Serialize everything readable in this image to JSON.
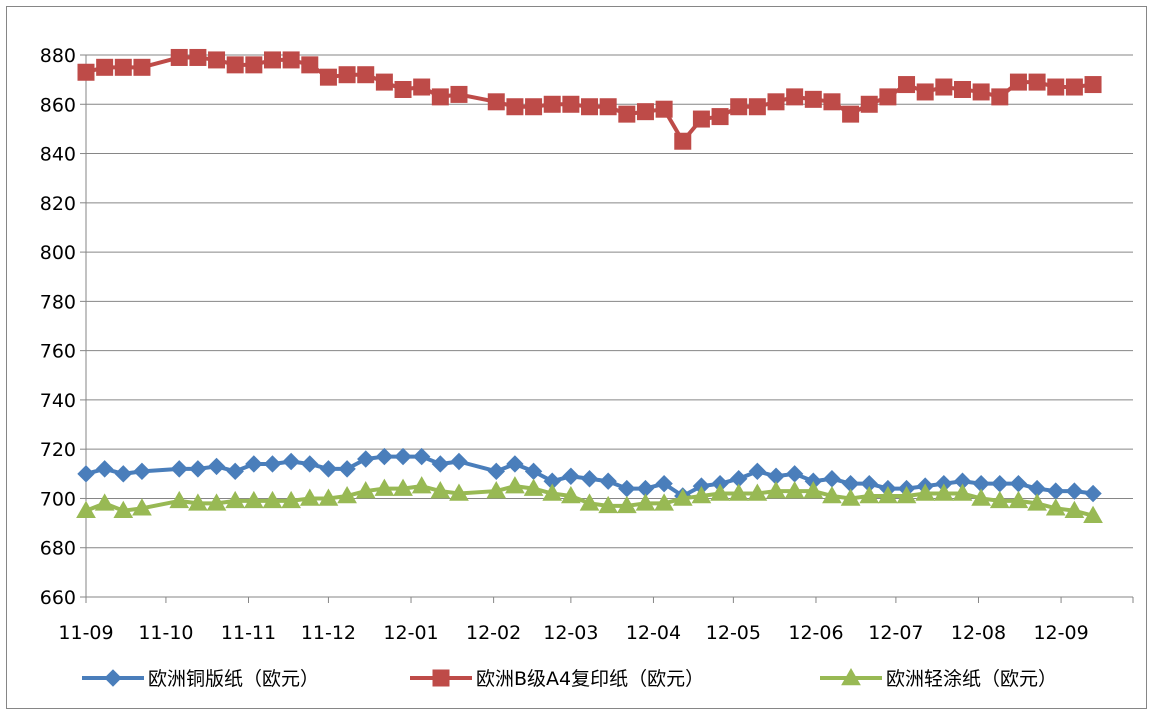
{
  "chart_data": {
    "type": "line",
    "title": "",
    "xlabel": "",
    "ylabel": "",
    "ylim": [
      660,
      880
    ],
    "yticks": [
      660,
      680,
      700,
      720,
      740,
      760,
      780,
      800,
      820,
      840,
      860,
      880
    ],
    "grid": true,
    "legend_position": "bottom",
    "x_range": [
      "2011-09-01",
      "2012-09-28"
    ],
    "xtick_labels": [
      "11-09",
      "11-10",
      "11-11",
      "11-12",
      "12-01",
      "12-02",
      "12-03",
      "12-04",
      "12-05",
      "12-06",
      "12-07",
      "12-08",
      "12-09"
    ],
    "xtick_dates": [
      "2011-09-01",
      "2011-10-01",
      "2011-11-01",
      "2011-12-01",
      "2012-01-01",
      "2012-02-01",
      "2012-03-01",
      "2012-04-01",
      "2012-05-01",
      "2012-06-01",
      "2012-07-01",
      "2012-08-01",
      "2012-09-01"
    ],
    "x": [
      "2011-09-01",
      "2011-09-08",
      "2011-09-15",
      "2011-09-22",
      "2011-10-06",
      "2011-10-13",
      "2011-10-20",
      "2011-10-27",
      "2011-11-03",
      "2011-11-10",
      "2011-11-17",
      "2011-11-24",
      "2011-12-01",
      "2011-12-08",
      "2011-12-15",
      "2011-12-22",
      "2011-12-29",
      "2012-01-05",
      "2012-01-12",
      "2012-01-19",
      "2012-02-02",
      "2012-02-09",
      "2012-02-16",
      "2012-02-23",
      "2012-03-01",
      "2012-03-08",
      "2012-03-15",
      "2012-03-22",
      "2012-03-29",
      "2012-04-05",
      "2012-04-12",
      "2012-04-19",
      "2012-04-26",
      "2012-05-03",
      "2012-05-10",
      "2012-05-17",
      "2012-05-24",
      "2012-05-31",
      "2012-06-07",
      "2012-06-14",
      "2012-06-21",
      "2012-06-28",
      "2012-07-05",
      "2012-07-12",
      "2012-07-19",
      "2012-07-26",
      "2012-08-02",
      "2012-08-09",
      "2012-08-16",
      "2012-08-23",
      "2012-08-30",
      "2012-09-06",
      "2012-09-13"
    ],
    "series": [
      {
        "name": "欧洲铜版纸（欧元）",
        "color": "#4a7ebb",
        "marker": "diamond",
        "values": [
          710,
          712,
          710,
          711,
          712,
          712,
          713,
          711,
          714,
          714,
          715,
          714,
          712,
          712,
          716,
          717,
          717,
          717,
          714,
          715,
          711,
          714,
          711,
          707,
          709,
          708,
          707,
          704,
          704,
          706,
          701,
          705,
          706,
          708,
          711,
          709,
          710,
          707,
          708,
          706,
          706,
          704,
          704,
          705,
          706,
          707,
          706,
          706,
          706,
          704,
          703,
          703,
          702
        ]
      },
      {
        "name": "欧洲B级A4复印纸（欧元）",
        "color": "#be4b48",
        "marker": "square",
        "values": [
          873,
          875,
          875,
          875,
          879,
          879,
          878,
          876,
          876,
          878,
          878,
          876,
          871,
          872,
          872,
          869,
          866,
          867,
          863,
          864,
          861,
          859,
          859,
          860,
          860,
          859,
          859,
          856,
          857,
          858,
          845,
          854,
          855,
          859,
          859,
          861,
          863,
          862,
          861,
          856,
          860,
          863,
          868,
          865,
          867,
          866,
          865,
          863,
          869,
          869,
          867,
          867,
          868
        ]
      },
      {
        "name": "欧洲轻涂纸（欧元）",
        "color": "#98b954",
        "marker": "triangle",
        "values": [
          695,
          698,
          695,
          696,
          699,
          698,
          698,
          699,
          699,
          699,
          699,
          700,
          700,
          701,
          703,
          704,
          704,
          705,
          703,
          702,
          703,
          705,
          704,
          702,
          701,
          698,
          697,
          697,
          698,
          698,
          700,
          701,
          702,
          702,
          702,
          703,
          703,
          703,
          701,
          700,
          701,
          701,
          701,
          702,
          702,
          702,
          700,
          699,
          699,
          698,
          696,
          695,
          693
        ]
      }
    ]
  }
}
